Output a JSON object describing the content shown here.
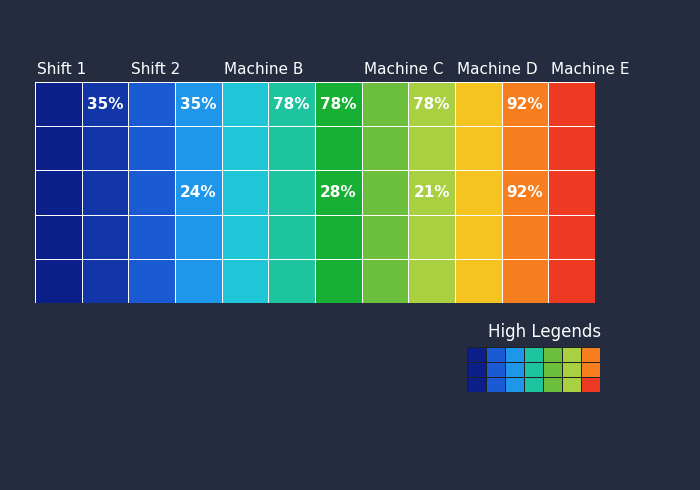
{
  "chart_data": {
    "type": "heatmap",
    "categories": [
      "Shift 1",
      null,
      "Shift 2",
      null,
      "Machine B",
      null,
      null,
      "Machine C",
      null,
      "Machine D",
      null,
      "Machine E"
    ],
    "colors": [
      "#0b1f8a",
      "#1236a8",
      "#1a5ad2",
      "#1e96ea",
      "#1ec6d8",
      "#1ec4a0",
      "#18b034",
      "#6cbf3c",
      "#a8d040",
      "#f6c420",
      "#f77e1e",
      "#ee3a22"
    ],
    "values": [
      [
        null,
        35,
        null,
        35,
        null,
        78,
        78,
        null,
        78,
        null,
        92,
        null
      ],
      [
        null,
        null,
        null,
        null,
        null,
        null,
        null,
        null,
        null,
        null,
        null,
        null
      ],
      [
        null,
        null,
        null,
        24,
        null,
        null,
        28,
        null,
        21,
        null,
        92,
        null
      ],
      [
        null,
        null,
        null,
        null,
        null,
        null,
        null,
        null,
        null,
        null,
        null,
        null
      ],
      [
        null,
        null,
        null,
        null,
        null,
        null,
        null,
        null,
        null,
        null,
        null,
        null
      ]
    ],
    "value_labels": [
      [
        null,
        "35%",
        null,
        "35%",
        null,
        "78%",
        "78%",
        null,
        "78%",
        null,
        "92%",
        null
      ],
      [
        null,
        null,
        null,
        null,
        null,
        null,
        null,
        null,
        null,
        null,
        null,
        null
      ],
      [
        null,
        null,
        null,
        "24%",
        null,
        null,
        "28%",
        null,
        "21%",
        null,
        "92%",
        null
      ],
      [
        null,
        null,
        null,
        null,
        null,
        null,
        null,
        null,
        null,
        null,
        null,
        null
      ],
      [
        null,
        null,
        null,
        null,
        null,
        null,
        null,
        null,
        null,
        null,
        null,
        null
      ]
    ],
    "data_labels": true,
    "annotations": [
      "High Legends"
    ]
  }
}
